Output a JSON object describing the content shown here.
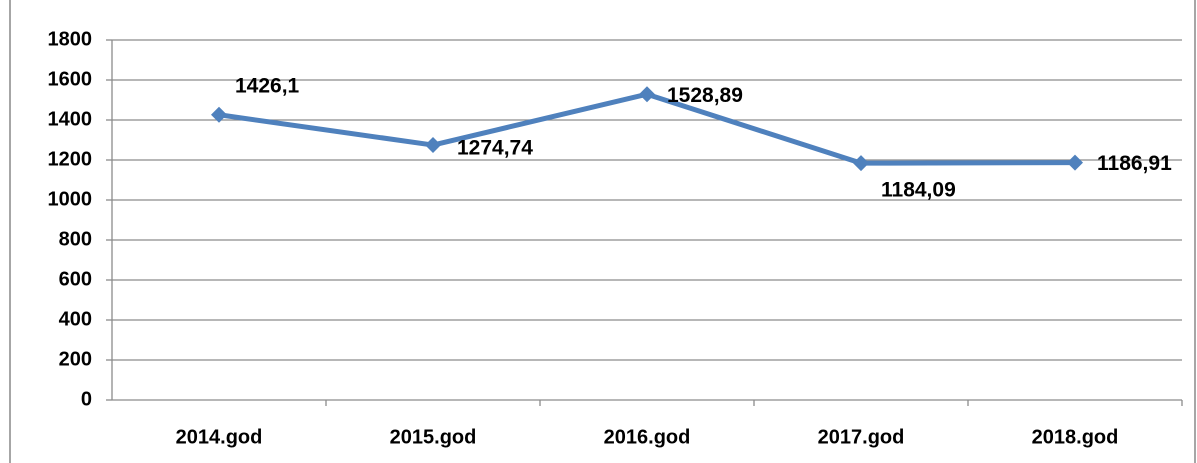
{
  "chart_data": {
    "type": "line",
    "categories": [
      "2014.god",
      "2015.god",
      "2016.god",
      "2017.god",
      "2018.god"
    ],
    "series": [
      {
        "color": "#4f81bd",
        "values": [
          1426.1,
          1274.74,
          1528.89,
          1184.09,
          1186.91
        ],
        "value_labels": [
          "1426,1",
          "1274,74",
          "1528,89",
          "1184,09",
          "1186,91"
        ]
      }
    ],
    "ylim": [
      0,
      1800
    ],
    "yticks": [
      0,
      200,
      400,
      600,
      800,
      1000,
      1200,
      1400,
      1600,
      1800
    ],
    "grid": true
  }
}
